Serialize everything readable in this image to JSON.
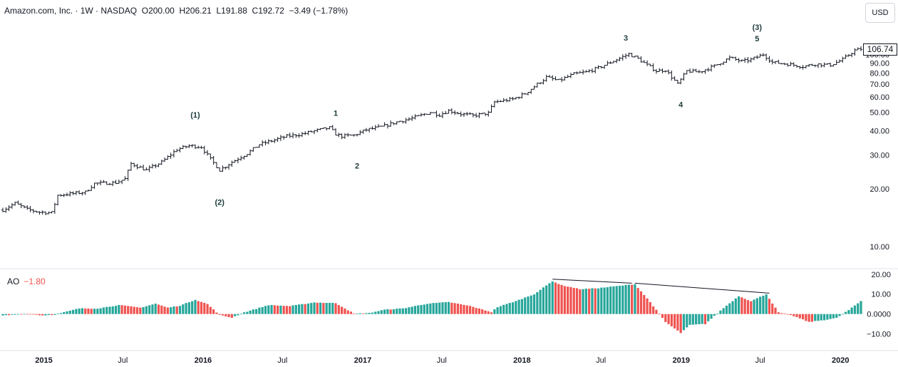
{
  "header": {
    "symbol": "Amazon.com, Inc.",
    "interval": "1W",
    "exchange": "NASDAQ",
    "ohlc": "O200.00  H206.21  L191.88  C192.72  −3.49 (−1.78%)"
  },
  "currency_button": "USD",
  "last_price_label": "106.74",
  "indicator": {
    "name": "AO",
    "value": "−1.80"
  },
  "colors": {
    "candle": "#131722",
    "ao_up": "#26a69a",
    "ao_down": "#ef5350",
    "wave_label": "#1d3b3b",
    "axis_text": "#131722",
    "divider": "#e0e3eb"
  },
  "chart_data": [
    {
      "type": "ohlc",
      "title": "Amazon.com, Inc. · 1W · NASDAQ",
      "y_scale": "log",
      "ylim": [
        8.5,
        120
      ],
      "x_range": [
        "2014-09-29",
        "2020-02-17"
      ],
      "y_ticks": [
        "10.00",
        "20.00",
        "30.00",
        "40.00",
        "50.00",
        "60.00",
        "70.00",
        "80.00",
        "90.00",
        "100.00"
      ],
      "x_ticks": [
        {
          "label": "2015",
          "date": "2015-01-01"
        },
        {
          "label": "Jul",
          "date": "2015-07-01"
        },
        {
          "label": "2016",
          "date": "2016-01-01"
        },
        {
          "label": "Jul",
          "date": "2016-07-01"
        },
        {
          "label": "2017",
          "date": "2017-01-01"
        },
        {
          "label": "Jul",
          "date": "2017-07-01"
        },
        {
          "label": "2018",
          "date": "2018-01-01"
        },
        {
          "label": "Jul",
          "date": "2018-07-01"
        },
        {
          "label": "2019",
          "date": "2019-01-01"
        },
        {
          "label": "Jul",
          "date": "2019-07-01"
        },
        {
          "label": "2020",
          "date": "2020-01-01"
        }
      ],
      "price_path": [
        [
          "2014-09-29",
          15.5
        ],
        [
          "2014-10-27",
          16.8
        ],
        [
          "2014-11-24",
          15.6
        ],
        [
          "2014-12-22",
          15.1
        ],
        [
          "2015-01-19",
          15.0
        ],
        [
          "2015-02-02",
          18.5
        ],
        [
          "2015-03-09",
          18.9
        ],
        [
          "2015-04-06",
          19.2
        ],
        [
          "2015-04-27",
          21.3
        ],
        [
          "2015-06-15",
          21.5
        ],
        [
          "2015-07-06",
          22.5
        ],
        [
          "2015-07-20",
          27.0
        ],
        [
          "2015-08-24",
          25.0
        ],
        [
          "2015-09-28",
          27.5
        ],
        [
          "2015-11-02",
          32.0
        ],
        [
          "2015-11-30",
          33.5
        ],
        [
          "2015-12-28",
          33.0
        ],
        [
          "2016-01-18",
          28.5
        ],
        [
          "2016-02-08",
          25.0
        ],
        [
          "2016-03-07",
          27.5
        ],
        [
          "2016-04-11",
          30.5
        ],
        [
          "2016-05-09",
          34.0
        ],
        [
          "2016-06-06",
          35.5
        ],
        [
          "2016-07-11",
          37.5
        ],
        [
          "2016-08-15",
          38.5
        ],
        [
          "2016-09-12",
          40.0
        ],
        [
          "2016-10-17",
          41.5
        ],
        [
          "2016-10-31",
          38.5
        ],
        [
          "2016-11-14",
          37.5
        ],
        [
          "2016-12-12",
          38.0
        ],
        [
          "2017-01-09",
          40.5
        ],
        [
          "2017-02-13",
          42.0
        ],
        [
          "2017-03-20",
          44.5
        ],
        [
          "2017-04-24",
          46.5
        ],
        [
          "2017-06-05",
          50.0
        ],
        [
          "2017-06-26",
          48.5
        ],
        [
          "2017-07-17",
          51.0
        ],
        [
          "2017-08-14",
          49.0
        ],
        [
          "2017-09-11",
          48.0
        ],
        [
          "2017-10-16",
          49.5
        ],
        [
          "2017-10-30",
          56.5
        ],
        [
          "2017-12-11",
          58.5
        ],
        [
          "2018-01-08",
          62.5
        ],
        [
          "2018-02-05",
          70.0
        ],
        [
          "2018-02-26",
          76.0
        ],
        [
          "2018-03-26",
          73.0
        ],
        [
          "2018-04-30",
          79.0
        ],
        [
          "2018-05-28",
          81.0
        ],
        [
          "2018-06-25",
          85.0
        ],
        [
          "2018-07-23",
          91.0
        ],
        [
          "2018-08-13",
          95.5
        ],
        [
          "2018-09-03",
          100.5
        ],
        [
          "2018-09-24",
          95.0
        ],
        [
          "2018-10-15",
          88.0
        ],
        [
          "2018-11-05",
          82.0
        ],
        [
          "2018-11-26",
          83.0
        ],
        [
          "2018-12-24",
          70.0
        ],
        [
          "2019-01-14",
          82.0
        ],
        [
          "2019-02-11",
          81.0
        ],
        [
          "2019-03-18",
          87.0
        ],
        [
          "2019-04-22",
          96.0
        ],
        [
          "2019-05-20",
          92.0
        ],
        [
          "2019-06-10",
          94.0
        ],
        [
          "2019-07-08",
          100.0
        ],
        [
          "2019-07-29",
          91.0
        ],
        [
          "2019-09-02",
          89.0
        ],
        [
          "2019-10-07",
          86.5
        ],
        [
          "2019-11-04",
          89.0
        ],
        [
          "2019-12-09",
          88.0
        ],
        [
          "2020-01-06",
          94.0
        ],
        [
          "2020-02-03",
          105.0
        ],
        [
          "2020-02-17",
          106.74
        ]
      ],
      "last_price": 106.74,
      "annotations": [
        {
          "text": "(1)",
          "date": "2015-12-14",
          "price": 47.0
        },
        {
          "text": "(2)",
          "date": "2016-02-08",
          "price": 16.5
        },
        {
          "text": "1",
          "date": "2016-10-31",
          "price": 48.0
        },
        {
          "text": "2",
          "date": "2016-12-19",
          "price": 25.5
        },
        {
          "text": "3",
          "date": "2018-08-27",
          "price": 118.0
        },
        {
          "text": "4",
          "date": "2018-12-31",
          "price": 53.0
        },
        {
          "text": "5",
          "date": "2019-06-24",
          "price": 117.0
        },
        {
          "text": "(3)",
          "date": "2019-06-24",
          "price": 134.0
        }
      ]
    },
    {
      "type": "histogram",
      "title": "AO",
      "ylim": [
        -13,
        21
      ],
      "y_ticks": [
        20,
        10,
        0,
        -10
      ],
      "y_tick_labels": [
        "20.00",
        "10.00",
        "0.0000",
        "−10.00"
      ],
      "ao_path": [
        [
          "2014-09-29",
          -0.8
        ],
        [
          "2014-11-24",
          0.2
        ],
        [
          "2014-12-29",
          -0.7
        ],
        [
          "2015-01-26",
          -0.3
        ],
        [
          "2015-03-23",
          2.8
        ],
        [
          "2015-05-04",
          2.8
        ],
        [
          "2015-06-22",
          4.5
        ],
        [
          "2015-08-10",
          3.2
        ],
        [
          "2015-09-14",
          5.2
        ],
        [
          "2015-10-12",
          3.2
        ],
        [
          "2015-11-09",
          4.2
        ],
        [
          "2015-12-14",
          7.2
        ],
        [
          "2016-01-11",
          5.0
        ],
        [
          "2016-02-08",
          -0.5
        ],
        [
          "2016-03-07",
          -1.8
        ],
        [
          "2016-04-04",
          0.8
        ],
        [
          "2016-05-30",
          4.5
        ],
        [
          "2016-07-18",
          4.0
        ],
        [
          "2016-09-12",
          5.8
        ],
        [
          "2016-10-31",
          5.5
        ],
        [
          "2016-12-12",
          0.2
        ],
        [
          "2017-01-16",
          0.5
        ],
        [
          "2017-02-20",
          2.2
        ],
        [
          "2017-04-03",
          2.8
        ],
        [
          "2017-05-29",
          5.2
        ],
        [
          "2017-07-17",
          6.0
        ],
        [
          "2017-09-04",
          4.0
        ],
        [
          "2017-10-23",
          1.0
        ],
        [
          "2017-11-06",
          3.5
        ],
        [
          "2017-12-18",
          6.5
        ],
        [
          "2018-01-29",
          10.0
        ],
        [
          "2018-03-12",
          16.5
        ],
        [
          "2018-04-02",
          14.5
        ],
        [
          "2018-05-14",
          12.5
        ],
        [
          "2018-06-25",
          13.0
        ],
        [
          "2018-08-27",
          14.5
        ],
        [
          "2018-09-17",
          15.0
        ],
        [
          "2018-10-22",
          6.0
        ],
        [
          "2018-11-26",
          -4.0
        ],
        [
          "2018-12-31",
          -9.5
        ],
        [
          "2019-01-21",
          -5.5
        ],
        [
          "2019-02-25",
          -5.0
        ],
        [
          "2019-04-08",
          3.0
        ],
        [
          "2019-05-13",
          9.0
        ],
        [
          "2019-06-10",
          6.5
        ],
        [
          "2019-07-15",
          10.0
        ],
        [
          "2019-08-12",
          0.8
        ],
        [
          "2019-09-16",
          -1.0
        ],
        [
          "2019-10-21",
          -4.0
        ],
        [
          "2019-11-25",
          -3.0
        ],
        [
          "2019-12-23",
          -2.0
        ],
        [
          "2020-01-20",
          2.0
        ],
        [
          "2020-02-17",
          6.5
        ]
      ],
      "trendlines": [
        {
          "from": [
            "2018-03-12",
            17.5
          ],
          "to": [
            "2018-09-10",
            15.5
          ]
        },
        {
          "from": [
            "2018-09-17",
            15.5
          ],
          "to": [
            "2019-07-22",
            10.5
          ]
        }
      ]
    }
  ]
}
